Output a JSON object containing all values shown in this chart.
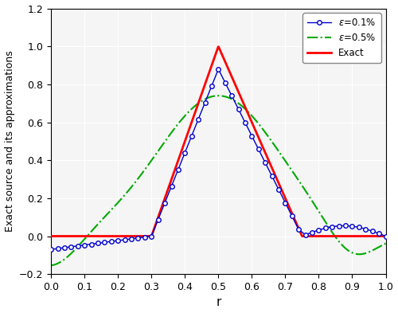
{
  "title": "",
  "xlabel": "r",
  "ylabel": "Exact source and its approximations",
  "xlim": [
    0,
    1
  ],
  "ylim": [
    -0.2,
    1.2
  ],
  "xticks": [
    0,
    0.1,
    0.2,
    0.3,
    0.4,
    0.5,
    0.6,
    0.7,
    0.8,
    0.9,
    1.0
  ],
  "yticks": [
    -0.2,
    0,
    0.2,
    0.4,
    0.6,
    0.8,
    1.0,
    1.2
  ],
  "exact_color": "#ff0000",
  "eps01_color": "#0000cc",
  "eps05_color": "#00aa00",
  "figsize": [
    5.0,
    3.93
  ],
  "dpi": 100
}
